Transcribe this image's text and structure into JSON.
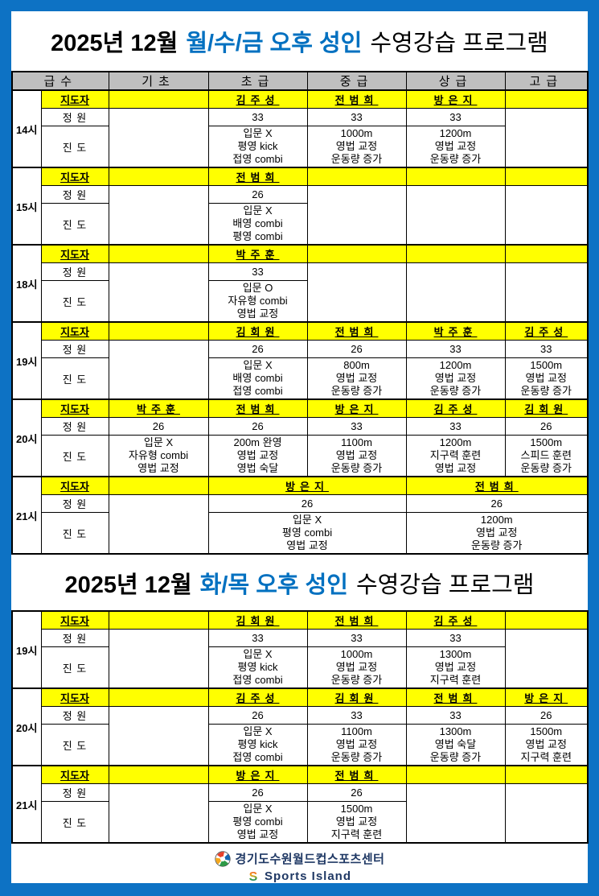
{
  "colors": {
    "frame_blue": "#0D72C4",
    "title_blue": "#0070C0",
    "header_gray": "#BFBFBF",
    "highlight_yellow": "#FFFF00",
    "footer_navy": "#1F3864"
  },
  "tables": [
    {
      "title": {
        "prefix": "2025년 12월",
        "highlight": "월/수/금 오후 성인",
        "suffix": "수영강습 프로그램"
      },
      "columns": [
        "급수",
        "기초",
        "초급",
        "중급",
        "상급",
        "고급"
      ],
      "row_labels": {
        "instructor": "지도자",
        "capacity": "정 원",
        "progress": "진 도"
      },
      "blocks": [
        {
          "time": "14시",
          "cells": [
            {
              "span": 1,
              "inst": "",
              "cap": "",
              "prog": []
            },
            {
              "span": 1,
              "inst": "김주성",
              "cap": "33",
              "prog": [
                "입문 X",
                "평영 kick",
                "접영 combi"
              ]
            },
            {
              "span": 1,
              "inst": "전범희",
              "cap": "33",
              "prog": [
                "1000m",
                "영법 교정",
                "운동량 증가"
              ]
            },
            {
              "span": 1,
              "inst": "방은지",
              "cap": "33",
              "prog": [
                "1200m",
                "영법 교정",
                "운동량 증가"
              ]
            },
            {
              "span": 1,
              "inst": "",
              "cap": "",
              "prog": []
            }
          ]
        },
        {
          "time": "15시",
          "cells": [
            {
              "span": 1,
              "inst": "",
              "cap": "",
              "prog": []
            },
            {
              "span": 1,
              "inst": "전범희",
              "cap": "26",
              "prog": [
                "입문 X",
                "배영 combi",
                "평영 combi"
              ]
            },
            {
              "span": 1,
              "inst": "",
              "cap": "",
              "prog": []
            },
            {
              "span": 1,
              "inst": "",
              "cap": "",
              "prog": []
            },
            {
              "span": 1,
              "inst": "",
              "cap": "",
              "prog": []
            }
          ]
        },
        {
          "time": "18시",
          "cells": [
            {
              "span": 1,
              "inst": "",
              "cap": "",
              "prog": []
            },
            {
              "span": 1,
              "inst": "박주훈",
              "cap": "33",
              "prog": [
                "입문 O",
                "자유형 combi",
                "영법 교정"
              ]
            },
            {
              "span": 1,
              "inst": "",
              "cap": "",
              "prog": []
            },
            {
              "span": 1,
              "inst": "",
              "cap": "",
              "prog": []
            },
            {
              "span": 1,
              "inst": "",
              "cap": "",
              "prog": []
            }
          ]
        },
        {
          "time": "19시",
          "cells": [
            {
              "span": 1,
              "inst": "",
              "cap": "",
              "prog": []
            },
            {
              "span": 1,
              "inst": "김회원",
              "cap": "26",
              "prog": [
                "입문 X",
                "배영 combi",
                "접영 combi"
              ]
            },
            {
              "span": 1,
              "inst": "전범희",
              "cap": "26",
              "prog": [
                "800m",
                "영법 교정",
                "운동량 증가"
              ]
            },
            {
              "span": 1,
              "inst": "박주훈",
              "cap": "33",
              "prog": [
                "1200m",
                "영법 교정",
                "운동량 증가"
              ]
            },
            {
              "span": 1,
              "inst": "김주성",
              "cap": "33",
              "prog": [
                "1500m",
                "영법 교정",
                "운동량 증가"
              ]
            }
          ]
        },
        {
          "time": "20시",
          "cells": [
            {
              "span": 1,
              "inst": "박주훈",
              "cap": "26",
              "prog": [
                "입문 X",
                "자유형 combi",
                "영법 교정"
              ]
            },
            {
              "span": 1,
              "inst": "전범희",
              "cap": "26",
              "prog": [
                "200m 완영",
                "영법 교정",
                "영법 숙달"
              ]
            },
            {
              "span": 1,
              "inst": "방은지",
              "cap": "33",
              "prog": [
                "1100m",
                "영법 교정",
                "운동량 증가"
              ]
            },
            {
              "span": 1,
              "inst": "김주성",
              "cap": "33",
              "prog": [
                "1200m",
                "지구력 훈련",
                "영법 교정"
              ]
            },
            {
              "span": 1,
              "inst": "김회원",
              "cap": "26",
              "prog": [
                "1500m",
                "스피드 훈련",
                "운동량 증가"
              ]
            }
          ]
        },
        {
          "time": "21시",
          "cells": [
            {
              "span": 1,
              "inst": "",
              "cap": "",
              "prog": []
            },
            {
              "span": 2,
              "inst": "방은지",
              "cap": "26",
              "prog": [
                "입문 X",
                "평영 combi",
                "영법 교정"
              ]
            },
            {
              "span": 2,
              "inst": "전범희",
              "cap": "26",
              "prog": [
                "1200m",
                "영법 교정",
                "운동량 증가"
              ]
            }
          ]
        }
      ]
    },
    {
      "title": {
        "prefix": "2025년 12월",
        "highlight": "화/목 오후 성인",
        "suffix": "수영강습 프로그램"
      },
      "columns": null,
      "row_labels": {
        "instructor": "지도자",
        "capacity": "정 원",
        "progress": "진 도"
      },
      "blocks": [
        {
          "time": "19시",
          "cells": [
            {
              "span": 1,
              "inst": "",
              "cap": "",
              "prog": []
            },
            {
              "span": 1,
              "inst": "김회원",
              "cap": "33",
              "prog": [
                "입문 X",
                "평영 kick",
                "접영 combi"
              ]
            },
            {
              "span": 1,
              "inst": "전범희",
              "cap": "33",
              "prog": [
                "1000m",
                "영법 교정",
                "운동량 증가"
              ]
            },
            {
              "span": 1,
              "inst": "김주성",
              "cap": "33",
              "prog": [
                "1300m",
                "영법 교정",
                "지구력 훈련"
              ]
            },
            {
              "span": 1,
              "inst": "",
              "cap": "",
              "prog": []
            }
          ]
        },
        {
          "time": "20시",
          "cells": [
            {
              "span": 1,
              "inst": "",
              "cap": "",
              "prog": []
            },
            {
              "span": 1,
              "inst": "김주성",
              "cap": "26",
              "prog": [
                "입문 X",
                "평영 kick",
                "접영 combi"
              ]
            },
            {
              "span": 1,
              "inst": "김회원",
              "cap": "33",
              "prog": [
                "1100m",
                "영법 교정",
                "운동량 증가"
              ]
            },
            {
              "span": 1,
              "inst": "전범희",
              "cap": "33",
              "prog": [
                "1300m",
                "영법 숙달",
                "운동량 증가"
              ]
            },
            {
              "span": 1,
              "inst": "방은지",
              "cap": "26",
              "prog": [
                "1500m",
                "영법 교정",
                "지구력 훈련"
              ]
            }
          ]
        },
        {
          "time": "21시",
          "cells": [
            {
              "span": 1,
              "inst": "",
              "cap": "",
              "prog": []
            },
            {
              "span": 1,
              "inst": "방은지",
              "cap": "26",
              "prog": [
                "입문 X",
                "평영 combi",
                "영법 교정"
              ]
            },
            {
              "span": 1,
              "inst": "전범희",
              "cap": "26",
              "prog": [
                "1500m",
                "영법 교정",
                "지구력 훈련"
              ]
            },
            {
              "span": 1,
              "inst": "",
              "cap": "",
              "prog": []
            },
            {
              "span": 1,
              "inst": "",
              "cap": "",
              "prog": []
            }
          ]
        }
      ]
    }
  ],
  "footer": {
    "center_icon": "soccer-ball-icon",
    "center_name": "경기도수원월드컵스포츠센터",
    "brand_icon": "sports-island-s-icon",
    "brand": "Sports Island"
  }
}
